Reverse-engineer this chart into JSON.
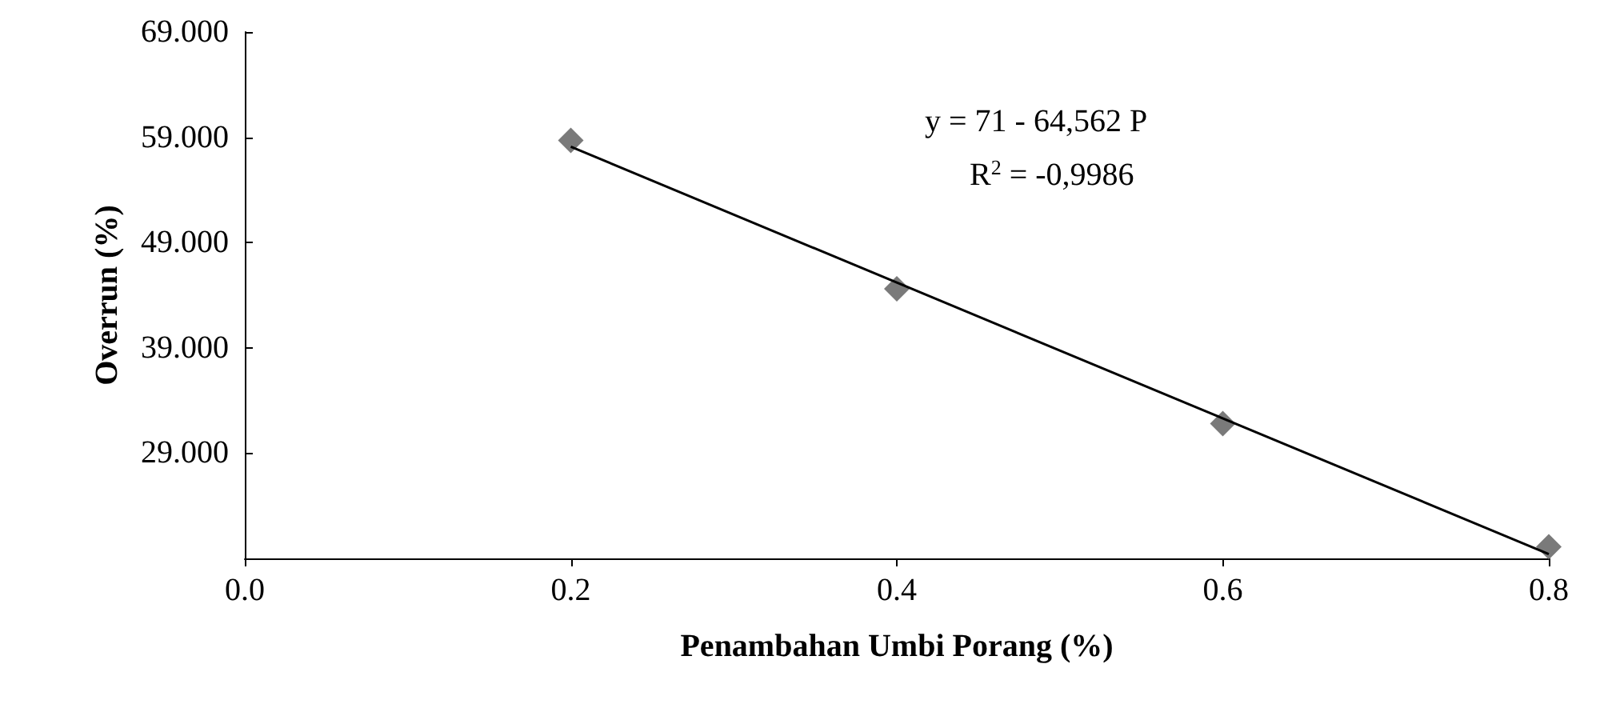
{
  "chart_data": {
    "type": "scatter",
    "xlabel": "Penambahan Umbi Porang (%)",
    "ylabel": "Overrun (%)",
    "x": [
      0.2,
      0.4,
      0.6,
      0.8
    ],
    "series": [
      {
        "color": "#595959",
        "values": [
          58.7,
          44.6,
          31.8,
          20.1
        ],
        "marker": "diamond"
      },
      {
        "type": "line",
        "color": "#000000",
        "x": [
          0.2,
          0.8
        ],
        "values": [
          58.1,
          19.4
        ],
        "marker": "none"
      }
    ],
    "xlim": [
      0,
      0.8
    ],
    "xticks": [
      {
        "value": 0,
        "label": "0.0"
      },
      {
        "value": 0.2,
        "label": "0.2"
      },
      {
        "value": 0.4,
        "label": "0.4"
      },
      {
        "value": 0.6,
        "label": "0.6"
      },
      {
        "value": 0.8,
        "label": "0.8"
      }
    ],
    "ylim": [
      19,
      69
    ],
    "yticks": [
      {
        "value": 29,
        "label": "29.000"
      },
      {
        "value": 39,
        "label": "39.000"
      },
      {
        "value": 49,
        "label": "49.000"
      },
      {
        "value": 59,
        "label": "59.000"
      },
      {
        "value": 69,
        "label": "69.000"
      }
    ],
    "grid": false,
    "annotations": [
      "y = 71 - 64,562 P",
      "R$^{2}$ = -0,9986"
    ]
  }
}
